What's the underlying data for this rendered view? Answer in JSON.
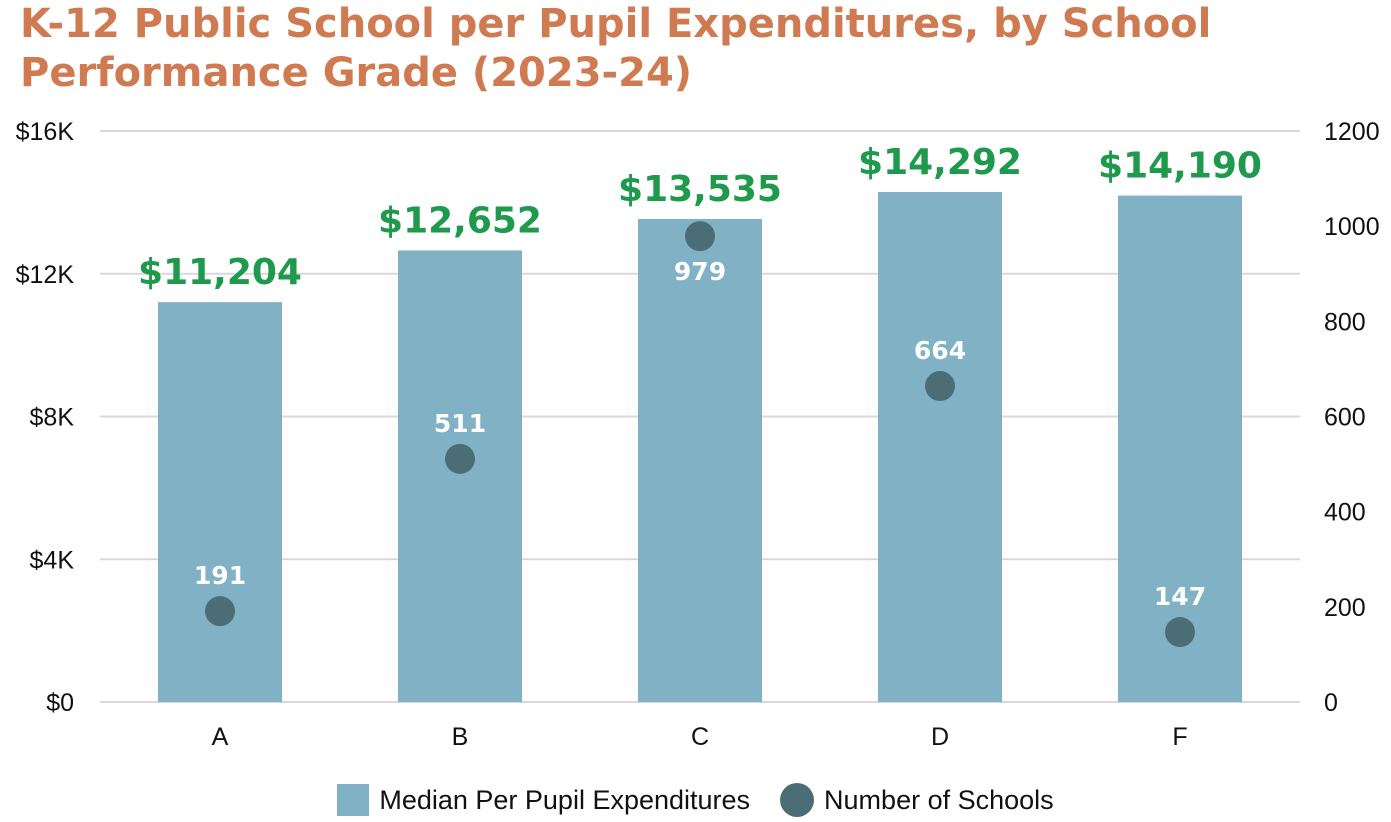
{
  "colors": {
    "title": "#D07A52",
    "bar": "#80B1C5",
    "dot": "#4B6D75",
    "bar_label": "#1F9A4D",
    "grid": "#D9D9D9"
  },
  "chart_data": {
    "type": "bar",
    "title": "K-12 Public School per Pupil Expenditures, by School Performance Grade (2023-24)",
    "categories": [
      "A",
      "B",
      "C",
      "D",
      "F"
    ],
    "series": [
      {
        "name": "Median Per Pupil Expenditures",
        "type": "bar",
        "axis": "left",
        "values": [
          11204,
          12652,
          13535,
          14292,
          14190
        ],
        "labels": [
          "$11,204",
          "$12,652",
          "$13,535",
          "$14,292",
          "$14,190"
        ]
      },
      {
        "name": "Number of Schools",
        "type": "scatter",
        "axis": "right",
        "values": [
          191,
          511,
          979,
          664,
          147
        ],
        "labels": [
          "191",
          "511",
          "979",
          "664",
          "147"
        ]
      }
    ],
    "y_left": {
      "lim": [
        0,
        16000
      ],
      "ticks": [
        0,
        4000,
        8000,
        12000,
        16000
      ],
      "tick_labels": [
        "$0",
        "$4K",
        "$8K",
        "$12K",
        "$16K"
      ]
    },
    "y_right": {
      "lim": [
        0,
        1200
      ],
      "ticks": [
        0,
        200,
        400,
        600,
        800,
        1000,
        1200
      ],
      "tick_labels": [
        "0",
        "200",
        "400",
        "600",
        "800",
        "1000",
        "1200"
      ]
    },
    "grid": true,
    "legend_position": "bottom-center"
  }
}
